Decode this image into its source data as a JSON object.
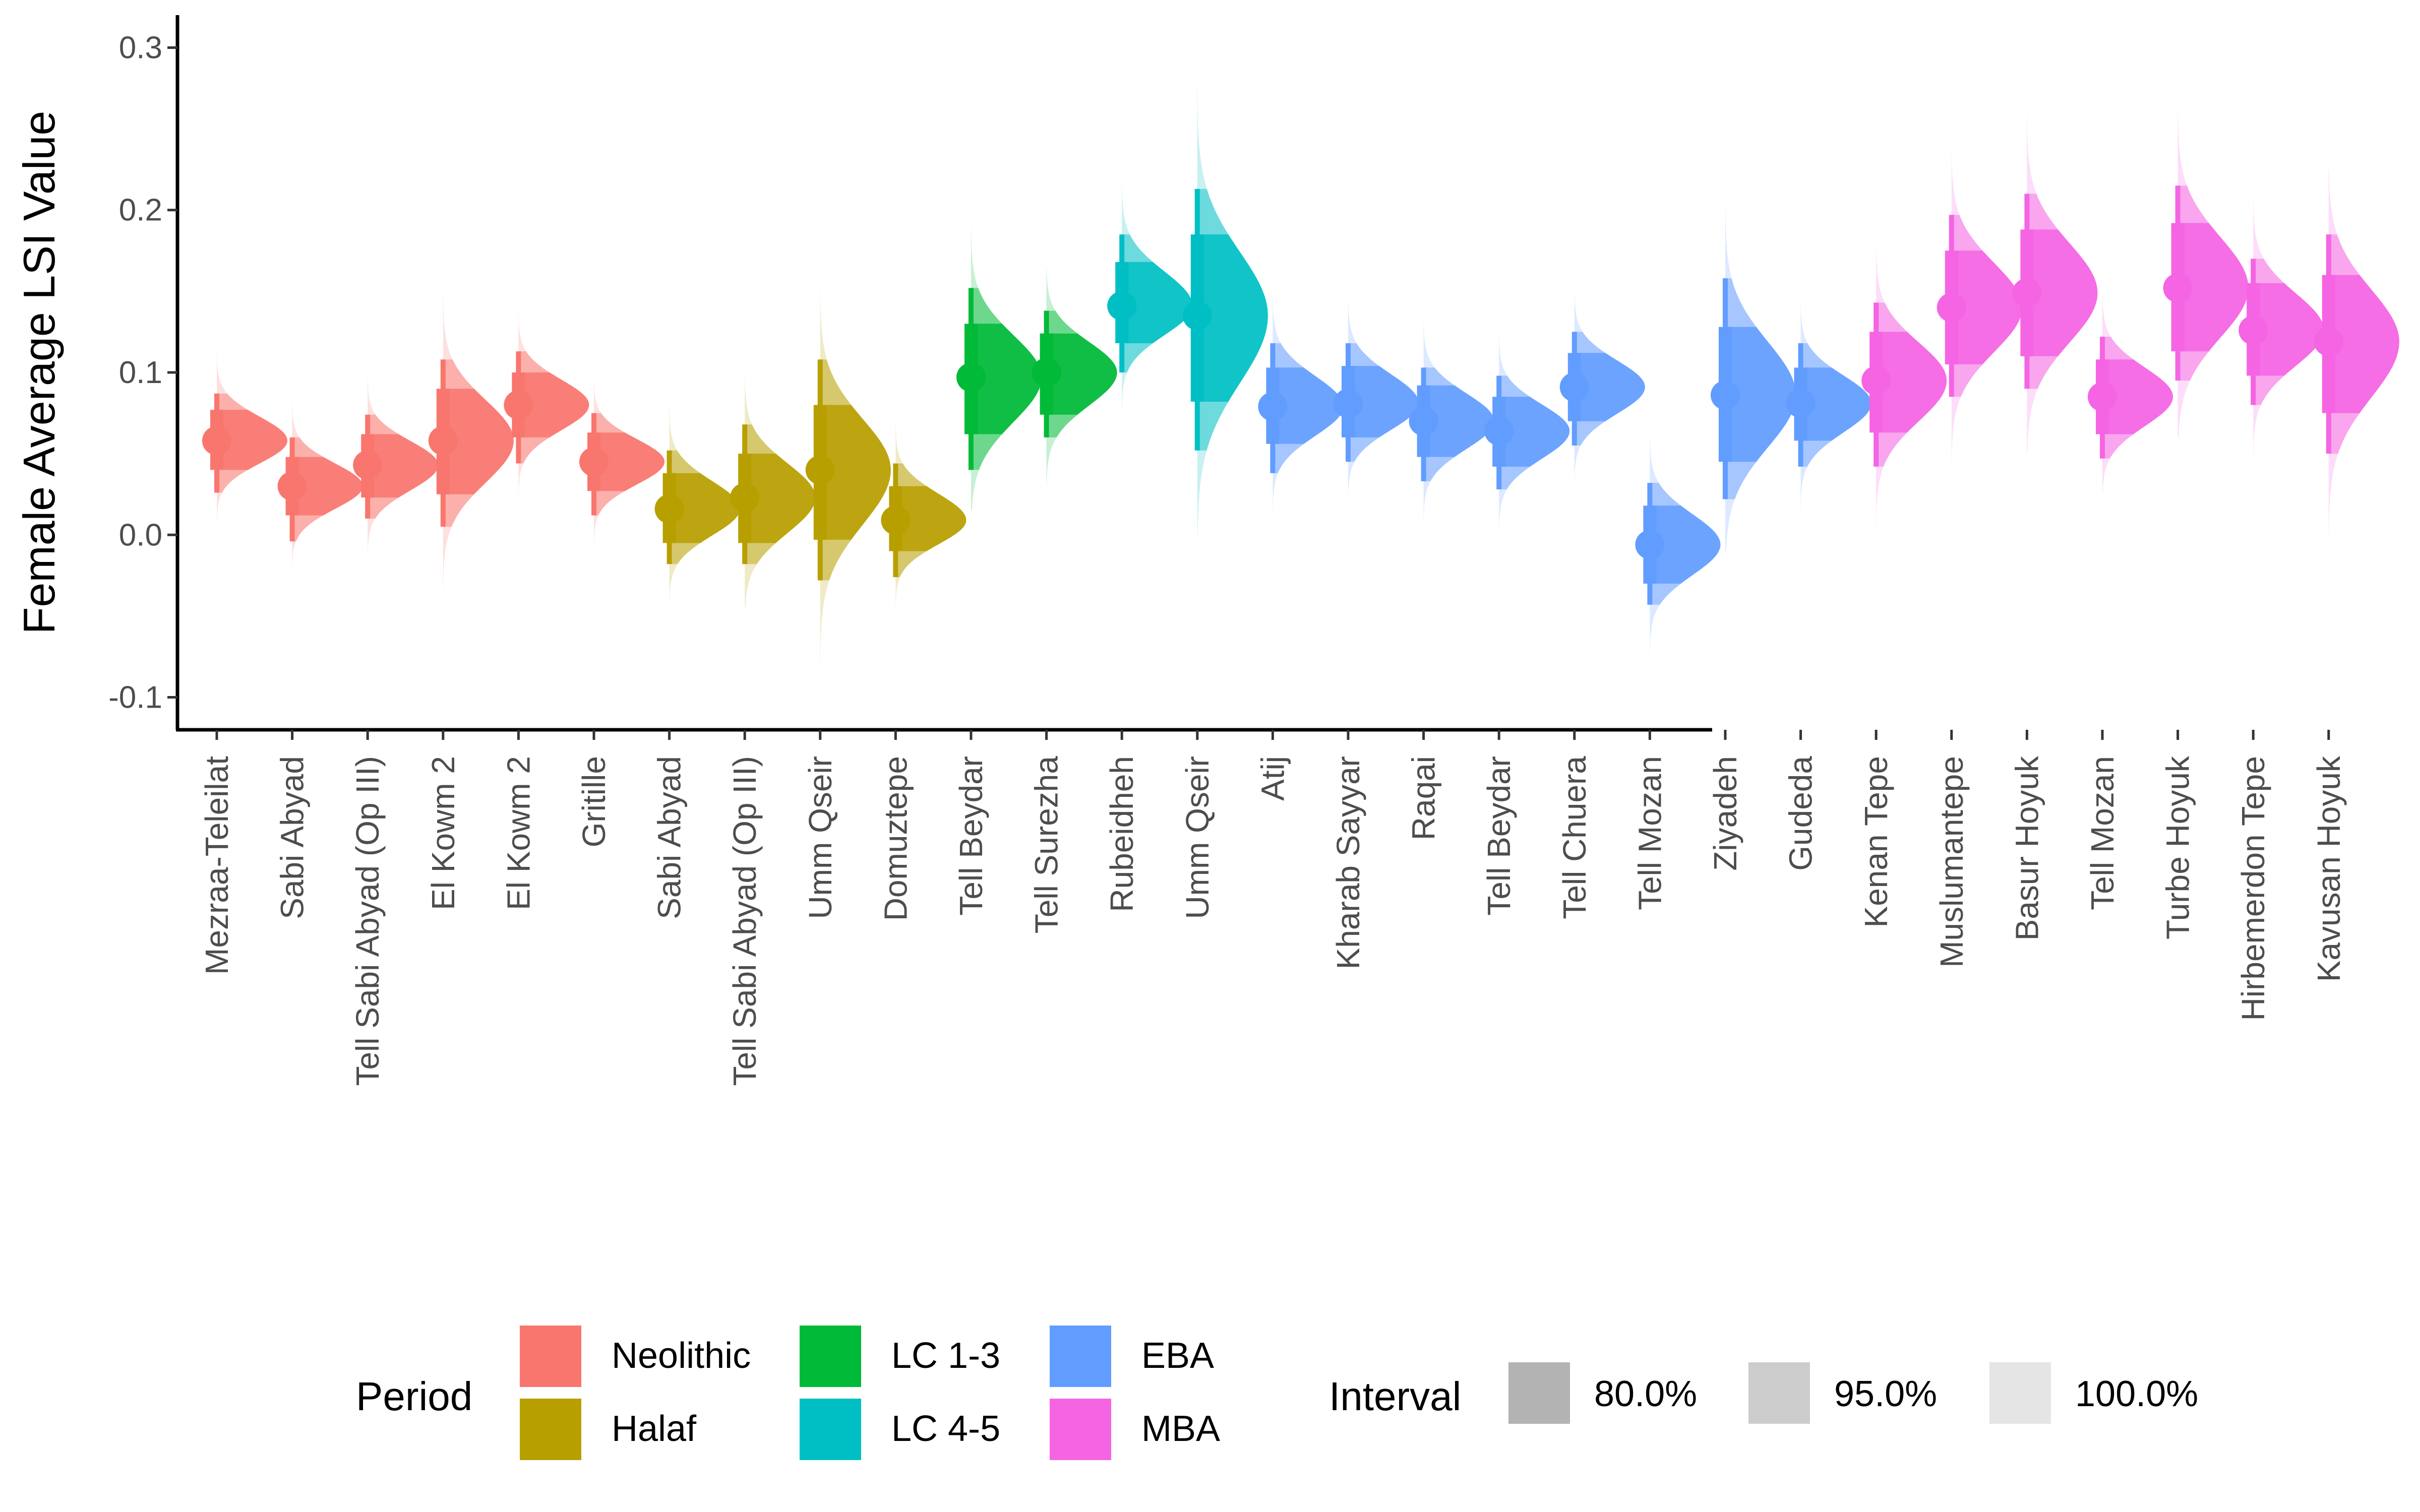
{
  "chart_data": {
    "type": "halfeye",
    "ylabel": "Female Average LSI Value",
    "xlabel": "",
    "ylim": [
      -0.12,
      0.32
    ],
    "yticks": [
      -0.1,
      0.0,
      0.1,
      0.2,
      0.3
    ],
    "ytick_labels": [
      "-0.1",
      "0.0",
      "0.1",
      "0.2",
      "0.3"
    ],
    "grid": false,
    "legend_placement": "bottom",
    "period_colors": {
      "Neolithic": "#F8766D",
      "Halaf": "#B79F00",
      "LC 1-3": "#00BA38",
      "LC 4-5": "#00BFC4",
      "EBA": "#619CFF",
      "MBA": "#F564E3"
    },
    "categories": [
      {
        "site": "Mezraa-Teleilat",
        "period": "Neolithic",
        "median": 0.058,
        "i80": [
          0.04,
          0.077
        ],
        "i95": [
          0.026,
          0.087
        ],
        "i100": [
          -0.005,
          0.115
        ]
      },
      {
        "site": "Sabi Abyad",
        "period": "Neolithic",
        "median": 0.03,
        "i80": [
          0.012,
          0.048
        ],
        "i95": [
          -0.004,
          0.06
        ],
        "i100": [
          -0.025,
          0.09
        ]
      },
      {
        "site": "Tell Sabi Abyad (Op III)",
        "period": "Neolithic",
        "median": 0.043,
        "i80": [
          0.023,
          0.062
        ],
        "i95": [
          0.01,
          0.074
        ],
        "i100": [
          -0.02,
          0.12
        ]
      },
      {
        "site": "El Kowm 2",
        "period": "Neolithic",
        "median": 0.058,
        "i80": [
          0.025,
          0.09
        ],
        "i95": [
          0.005,
          0.108
        ],
        "i100": [
          -0.035,
          0.15
        ]
      },
      {
        "site": "El Kowm 2",
        "period": "Neolithic",
        "median": 0.08,
        "i80": [
          0.06,
          0.1
        ],
        "i95": [
          0.044,
          0.113
        ],
        "i100": [
          0.01,
          0.145
        ]
      },
      {
        "site": "Gritille",
        "period": "Neolithic",
        "median": 0.045,
        "i80": [
          0.027,
          0.063
        ],
        "i95": [
          0.012,
          0.075
        ],
        "i100": [
          -0.01,
          0.105
        ]
      },
      {
        "site": "Sabi Abyad",
        "period": "Halaf",
        "median": 0.016,
        "i80": [
          -0.005,
          0.038
        ],
        "i95": [
          -0.018,
          0.052
        ],
        "i100": [
          -0.04,
          0.085
        ]
      },
      {
        "site": "Tell Sabi Abyad (Op III)",
        "period": "Halaf",
        "median": 0.023,
        "i80": [
          -0.005,
          0.05
        ],
        "i95": [
          -0.018,
          0.068
        ],
        "i100": [
          -0.045,
          0.105
        ]
      },
      {
        "site": "Umm Qseir",
        "period": "Halaf",
        "median": 0.04,
        "i80": [
          -0.003,
          0.08
        ],
        "i95": [
          -0.028,
          0.108
        ],
        "i100": [
          -0.09,
          0.16
        ]
      },
      {
        "site": "Domuztepe",
        "period": "Halaf",
        "median": 0.009,
        "i80": [
          -0.01,
          0.03
        ],
        "i95": [
          -0.026,
          0.044
        ],
        "i100": [
          -0.045,
          0.075
        ]
      },
      {
        "site": "Tell Beydar",
        "period": "LC 1-3",
        "median": 0.097,
        "i80": [
          0.062,
          0.13
        ],
        "i95": [
          0.04,
          0.152
        ],
        "i100": [
          0.015,
          0.19
        ]
      },
      {
        "site": "Tell Surezha",
        "period": "LC 1-3",
        "median": 0.1,
        "i80": [
          0.074,
          0.124
        ],
        "i95": [
          0.06,
          0.138
        ],
        "i100": [
          0.03,
          0.165
        ]
      },
      {
        "site": "Rubeidheh",
        "period": "LC 4-5",
        "median": 0.141,
        "i80": [
          0.118,
          0.168
        ],
        "i95": [
          0.1,
          0.185
        ],
        "i100": [
          0.075,
          0.215
        ]
      },
      {
        "site": "Umm Qseir",
        "period": "LC 4-5",
        "median": 0.135,
        "i80": [
          0.082,
          0.185
        ],
        "i95": [
          0.052,
          0.213
        ],
        "i100": [
          0.0,
          0.29
        ]
      },
      {
        "site": "Atij",
        "period": "EBA",
        "median": 0.079,
        "i80": [
          0.056,
          0.103
        ],
        "i95": [
          0.038,
          0.118
        ],
        "i100": [
          0.015,
          0.145
        ]
      },
      {
        "site": "Kharab Sayyar",
        "period": "EBA",
        "median": 0.081,
        "i80": [
          0.06,
          0.104
        ],
        "i95": [
          0.045,
          0.118
        ],
        "i100": [
          0.02,
          0.145
        ]
      },
      {
        "site": "Raqai",
        "period": "EBA",
        "median": 0.07,
        "i80": [
          0.048,
          0.092
        ],
        "i95": [
          0.033,
          0.103
        ],
        "i100": [
          0.01,
          0.13
        ]
      },
      {
        "site": "Tell Beydar",
        "period": "EBA",
        "median": 0.064,
        "i80": [
          0.042,
          0.085
        ],
        "i95": [
          0.028,
          0.098
        ],
        "i100": [
          0.005,
          0.125
        ]
      },
      {
        "site": "Tell Chuera",
        "period": "EBA",
        "median": 0.091,
        "i80": [
          0.07,
          0.112
        ],
        "i95": [
          0.055,
          0.125
        ],
        "i100": [
          0.03,
          0.15
        ]
      },
      {
        "site": "Tell Mozan",
        "period": "EBA",
        "median": -0.006,
        "i80": [
          -0.03,
          0.018
        ],
        "i95": [
          -0.043,
          0.032
        ],
        "i100": [
          -0.08,
          0.06
        ]
      },
      {
        "site": "Ziyadeh",
        "period": "EBA",
        "median": 0.086,
        "i80": [
          0.045,
          0.128
        ],
        "i95": [
          0.022,
          0.158
        ],
        "i100": [
          -0.01,
          0.205
        ]
      },
      {
        "site": "Gudeda",
        "period": "EBA",
        "median": 0.081,
        "i80": [
          0.058,
          0.103
        ],
        "i95": [
          0.042,
          0.118
        ],
        "i100": [
          0.015,
          0.145
        ]
      },
      {
        "site": "Kenan Tepe",
        "period": "MBA",
        "median": 0.095,
        "i80": [
          0.063,
          0.125
        ],
        "i95": [
          0.042,
          0.143
        ],
        "i100": [
          0.0,
          0.175
        ]
      },
      {
        "site": "Muslumantepe",
        "period": "MBA",
        "median": 0.14,
        "i80": [
          0.105,
          0.175
        ],
        "i95": [
          0.085,
          0.197
        ],
        "i100": [
          0.045,
          0.235
        ]
      },
      {
        "site": "Basur Hoyuk",
        "period": "MBA",
        "median": 0.149,
        "i80": [
          0.11,
          0.188
        ],
        "i95": [
          0.09,
          0.21
        ],
        "i100": [
          0.05,
          0.26
        ]
      },
      {
        "site": "Tell Mozan",
        "period": "MBA",
        "median": 0.085,
        "i80": [
          0.062,
          0.108
        ],
        "i95": [
          0.047,
          0.122
        ],
        "i100": [
          0.025,
          0.15
        ]
      },
      {
        "site": "Turbe Hoyuk",
        "period": "MBA",
        "median": 0.152,
        "i80": [
          0.113,
          0.192
        ],
        "i95": [
          0.095,
          0.215
        ],
        "i100": [
          0.06,
          0.26
        ]
      },
      {
        "site": "Hirbemerdon Tepe",
        "period": "MBA",
        "median": 0.126,
        "i80": [
          0.098,
          0.155
        ],
        "i95": [
          0.08,
          0.17
        ],
        "i100": [
          0.045,
          0.205
        ]
      },
      {
        "site": "Kavusan Hoyuk",
        "period": "MBA",
        "median": 0.119,
        "i80": [
          0.075,
          0.16
        ],
        "i95": [
          0.05,
          0.185
        ],
        "i100": [
          0.0,
          0.225
        ]
      }
    ],
    "legend": {
      "period_title": "Period",
      "periods": [
        "Neolithic",
        "Halaf",
        "LC 1-3",
        "LC 4-5",
        "EBA",
        "MBA"
      ],
      "interval_title": "Interval",
      "intervals": [
        {
          "label": "80.0%",
          "color": "#b3b3b3"
        },
        {
          "label": "95.0%",
          "color": "#cccccc"
        },
        {
          "label": "100.0%",
          "color": "#e5e5e5"
        }
      ]
    }
  }
}
